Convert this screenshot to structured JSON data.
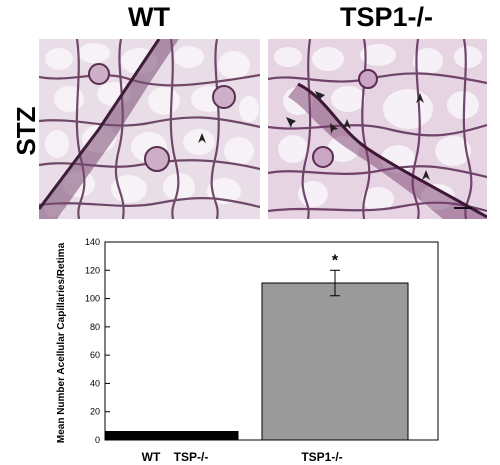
{
  "panels": {
    "left_title": "WT",
    "right_title": "TSP1-/-",
    "row_label": "STZ"
  },
  "chart_data": {
    "type": "bar",
    "categories": [
      "WT TSP-/-",
      "TSP1-/-"
    ],
    "category_labels": [
      "WT    TSP-/-",
      "TSP1-/-"
    ],
    "values": [
      6,
      111
    ],
    "errors": [
      0.5,
      9
    ],
    "bar_colors": [
      "#000000",
      "#9a9a9a"
    ],
    "significance": [
      "",
      "*"
    ],
    "ylabel": "Mean Number Acellular Capillaries/Retima",
    "ylim": [
      0,
      140
    ],
    "yticks": [
      0,
      20,
      40,
      60,
      80,
      100,
      120,
      140
    ],
    "grid": false
  }
}
